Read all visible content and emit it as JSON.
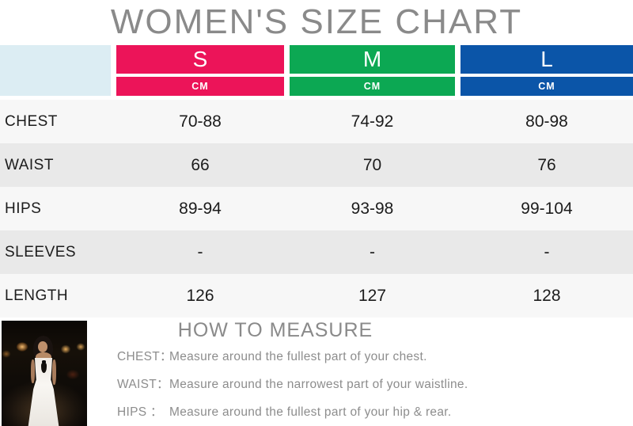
{
  "title": "WOMEN'S SIZE CHART",
  "colors": {
    "size_s": "#ec1459",
    "size_m": "#0ca853",
    "size_l": "#0b55a8",
    "header_corner": "#dcedf3",
    "row_light": "#f7f7f7",
    "row_dark": "#e9e9e9",
    "heading_gray": "#8a8a8a",
    "body_text": "#1c1c1c"
  },
  "chart_data": {
    "type": "table",
    "title": "WOMEN'S SIZE CHART",
    "unit": "CM",
    "columns": [
      {
        "label": "S",
        "color": "#ec1459"
      },
      {
        "label": "M",
        "color": "#0ca853"
      },
      {
        "label": "L",
        "color": "#0b55a8"
      }
    ],
    "rows": [
      {
        "label": "CHEST",
        "values": [
          "70-88",
          "74-92",
          "80-98"
        ]
      },
      {
        "label": "WAIST",
        "values": [
          "66",
          "70",
          "76"
        ]
      },
      {
        "label": "HIPS",
        "values": [
          "89-94",
          "93-98",
          "99-104"
        ]
      },
      {
        "label": "SLEEVES",
        "values": [
          "-",
          "-",
          "-"
        ]
      },
      {
        "label": "LENGTH",
        "values": [
          "126",
          "127",
          "128"
        ]
      }
    ]
  },
  "how_to_measure": {
    "title": "HOW TO MEASURE",
    "items": [
      {
        "label": "CHEST：",
        "text": "Measure around the fullest part of your chest."
      },
      {
        "label": "WAIST：",
        "text": "Measure around the narrowest part of your waistline."
      },
      {
        "label": "HIPS ：",
        "text": "Measure around the fullest part of your hip & rear."
      }
    ]
  },
  "photo": {
    "description": "Model wearing a long white strapless dress standing on a dark night street with warm lantern lights"
  }
}
